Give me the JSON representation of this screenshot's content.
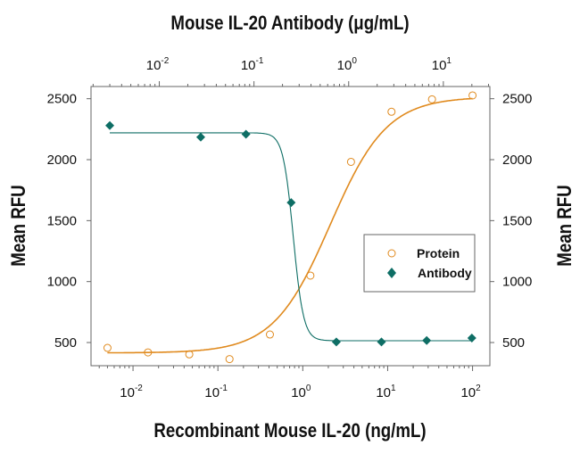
{
  "chart_data": {
    "type": "scatter",
    "top_xlabel": "Mouse IL-20 Antibody (μg/mL)",
    "bottom_xlabel": "Recombinant Mouse IL-20 (ng/mL)",
    "ylabel_left": "Mean RFU",
    "ylabel_right": "Mean RFU",
    "bottom_xscale": "log",
    "top_xscale": "log",
    "bottom_xlim": [
      0.0032,
      160
    ],
    "top_xlim": [
      0.0019,
      31
    ],
    "ylim": [
      310,
      2600
    ],
    "yticks": [
      500,
      1000,
      1500,
      2000,
      2500
    ],
    "bottom_xticks": [
      {
        "base": "10",
        "exp": "-2",
        "value": 0.01
      },
      {
        "base": "10",
        "exp": "-1",
        "value": 0.1
      },
      {
        "base": "10",
        "exp": "0",
        "value": 1
      },
      {
        "base": "10",
        "exp": "1",
        "value": 10
      },
      {
        "base": "10",
        "exp": "2",
        "value": 100
      }
    ],
    "top_xticks": [
      {
        "base": "10",
        "exp": "-2",
        "value": 0.01
      },
      {
        "base": "10",
        "exp": "-1",
        "value": 0.1
      },
      {
        "base": "10",
        "exp": "0",
        "value": 1
      },
      {
        "base": "10",
        "exp": "1",
        "value": 10
      }
    ],
    "grid": false,
    "legend_position": "right",
    "series": [
      {
        "name": "Protein",
        "axis": "bottom",
        "marker": "open-circle",
        "color": "#E08A1E",
        "x": [
          0.005,
          0.015,
          0.046,
          0.137,
          0.41,
          1.23,
          3.7,
          11.1,
          33.3,
          100
        ],
        "y": [
          456,
          419,
          403,
          364,
          566,
          1049,
          1982,
          2393,
          2495,
          2527
        ],
        "fit": {
          "bottom": 415,
          "top": 2515,
          "ec50": 2.1,
          "hill": 1.3
        }
      },
      {
        "name": "Antibody",
        "axis": "top",
        "marker": "filled-diamond",
        "color": "#0E6E65",
        "x": [
          0.003,
          0.0274,
          0.0823,
          0.247,
          0.741,
          2.22,
          6.67,
          20
        ],
        "y": [
          2280,
          2185,
          2209,
          1648,
          505,
          505,
          517,
          537
        ],
        "fit": {
          "bottom": 515,
          "top": 2220,
          "ec50": 0.26,
          "hill": -8
        }
      }
    ]
  }
}
